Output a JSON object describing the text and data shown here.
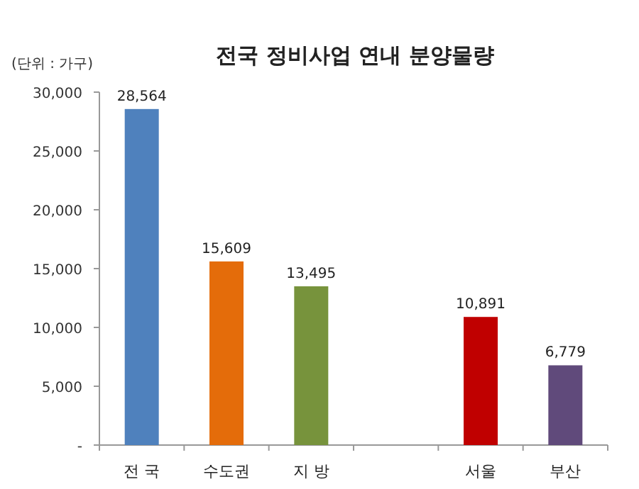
{
  "chart_data": {
    "type": "bar",
    "title": "전국 정비사업 연내 분양물량",
    "annotations": [
      "(단위 : 가구)"
    ],
    "categories": [
      "전 국",
      "수도권",
      "지 방",
      null,
      "서울",
      "부산"
    ],
    "values": [
      28564,
      15609,
      13495,
      null,
      10891,
      6779
    ],
    "colors": [
      "#4f81bd",
      "#e46c0a",
      "#77933c",
      null,
      "#c00000",
      "#604a7b"
    ],
    "value_labels": [
      "28,564",
      "15,609",
      "13,495",
      null,
      "10,891",
      "6,779"
    ],
    "ylim": [
      0,
      30000
    ],
    "yticks": [
      {
        "value": 0,
        "label": "-"
      },
      {
        "value": 5000,
        "label": "5,000"
      },
      {
        "value": 10000,
        "label": "10,000"
      },
      {
        "value": 15000,
        "label": "15,000"
      },
      {
        "value": 20000,
        "label": "20,000"
      },
      {
        "value": 25000,
        "label": "25,000"
      },
      {
        "value": 30000,
        "label": "30,000"
      }
    ]
  }
}
